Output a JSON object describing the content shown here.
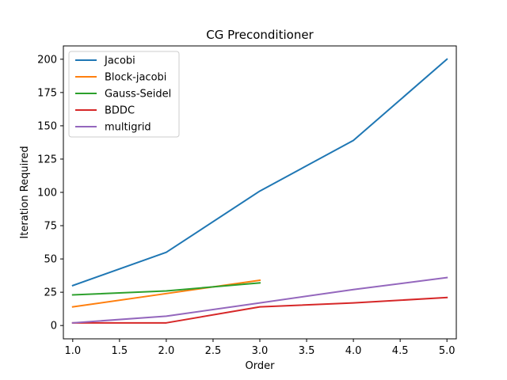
{
  "chart_data": {
    "type": "line",
    "title": "CG Preconditioner",
    "xlabel": "Order",
    "ylabel": "Iteration Required",
    "xlim": [
      0.9,
      5.1
    ],
    "ylim": [
      -10,
      210
    ],
    "xticks": [
      1.0,
      1.5,
      2.0,
      2.5,
      3.0,
      3.5,
      4.0,
      4.5,
      5.0
    ],
    "xtick_labels": [
      "1.0",
      "1.5",
      "2.0",
      "2.5",
      "3.0",
      "3.5",
      "4.0",
      "4.5",
      "5.0"
    ],
    "yticks": [
      0,
      25,
      50,
      75,
      100,
      125,
      150,
      175,
      200
    ],
    "ytick_labels": [
      "0",
      "25",
      "50",
      "75",
      "100",
      "125",
      "150",
      "175",
      "200"
    ],
    "grid": false,
    "legend_position": "top-left",
    "series": [
      {
        "name": "Jacobi",
        "color": "#1f77b4",
        "x": [
          1,
          2,
          3,
          4,
          5
        ],
        "y": [
          30,
          55,
          101,
          139,
          200
        ]
      },
      {
        "name": "Block-jacobi",
        "color": "#ff7f0e",
        "x": [
          1,
          2,
          3
        ],
        "y": [
          14,
          24,
          34
        ]
      },
      {
        "name": "Gauss-Seidel",
        "color": "#2ca02c",
        "x": [
          1,
          2,
          3
        ],
        "y": [
          23,
          26,
          32
        ]
      },
      {
        "name": "BDDC",
        "color": "#d62728",
        "x": [
          1,
          2,
          3,
          4,
          5
        ],
        "y": [
          2,
          2,
          14,
          17,
          21
        ]
      },
      {
        "name": "multigrid",
        "color": "#9467bd",
        "x": [
          1,
          2,
          3,
          4,
          5
        ],
        "y": [
          2,
          7,
          17,
          27,
          36
        ]
      }
    ]
  }
}
